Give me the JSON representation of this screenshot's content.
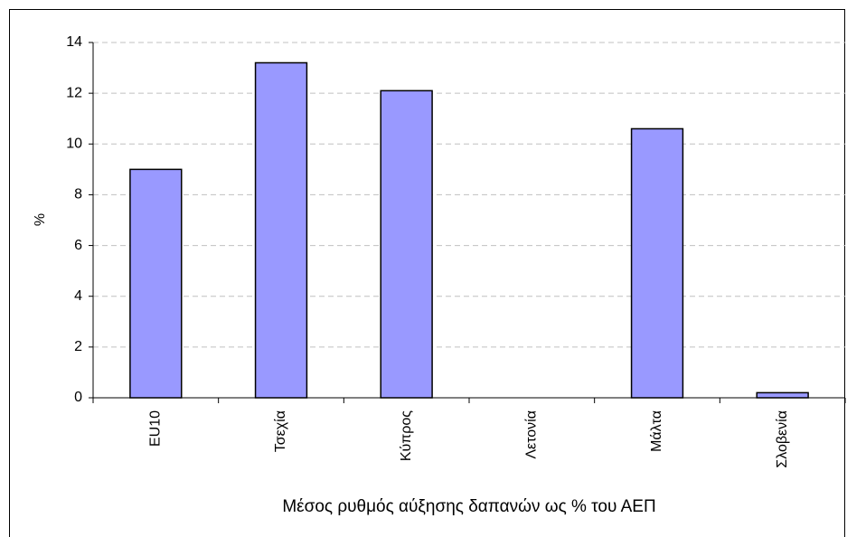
{
  "chart_data": {
    "type": "bar",
    "y_label": "%",
    "x_label": "Μέσος ρυθμός αύξησης δαπανών ως % του ΑΕΠ",
    "categories": [
      "EU10",
      "Τσεχία",
      "Κύπρος",
      "Λετονία",
      "Μάλτα",
      "Σλοβενία"
    ],
    "values": [
      9,
      13.2,
      12.1,
      0,
      10.6,
      0.2
    ],
    "color": "#9999ff",
    "ylim": [
      0,
      14
    ],
    "yticks": [
      0,
      2,
      4,
      6,
      8,
      10,
      12,
      14
    ],
    "grid": true
  }
}
